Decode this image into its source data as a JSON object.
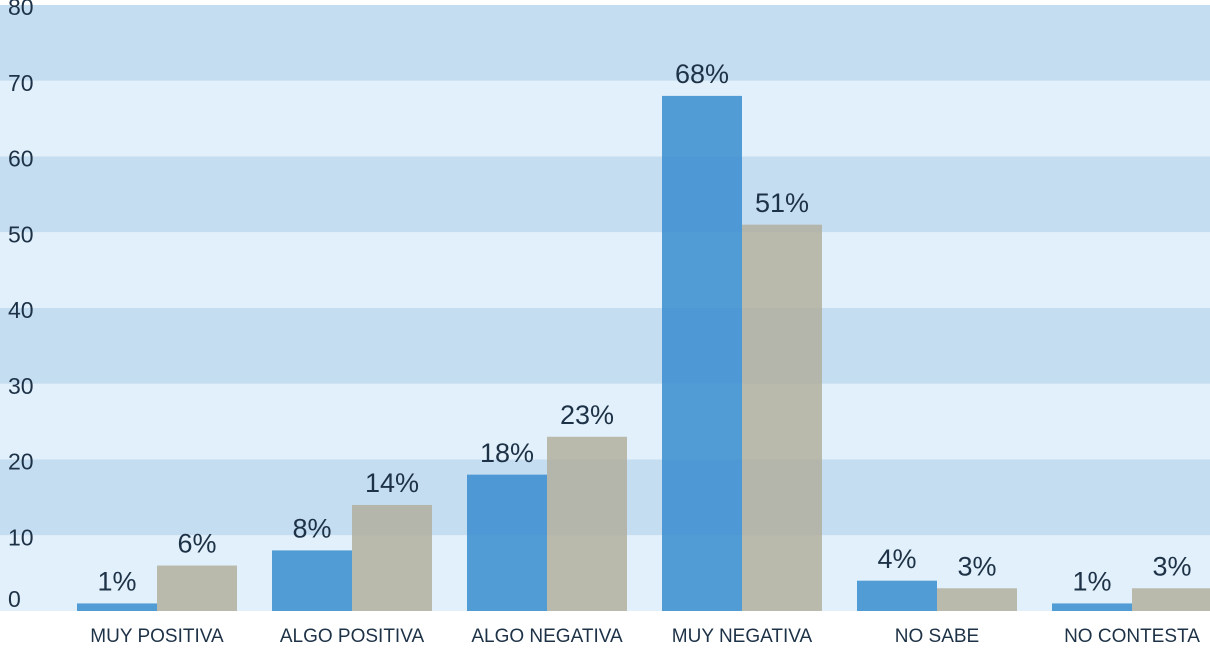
{
  "chart_data": {
    "type": "bar",
    "categories": [
      "MUY POSITIVA",
      "ALGO POSITIVA",
      "ALGO NEGATIVA",
      "MUY NEGATIVA",
      "NO SABE",
      "NO CONTESTA"
    ],
    "series": [
      {
        "color": "#3d8fd0",
        "values": [
          1,
          8,
          18,
          68,
          4,
          1
        ],
        "value_labels": [
          "1%",
          "8%",
          "18%",
          "68%",
          "4%",
          "1%"
        ]
      },
      {
        "color": "#b3b1a0",
        "values": [
          6,
          14,
          23,
          51,
          3,
          3
        ],
        "value_labels": [
          "6%",
          "14%",
          "23%",
          "51%",
          "3%",
          "3%"
        ]
      }
    ],
    "ylim": [
      0,
      80
    ],
    "yticks": [
      0,
      10,
      20,
      30,
      40,
      50,
      60,
      70,
      80
    ],
    "grid": true,
    "band_colors": [
      "#e1f0fa",
      "#c4ddf0"
    ]
  }
}
